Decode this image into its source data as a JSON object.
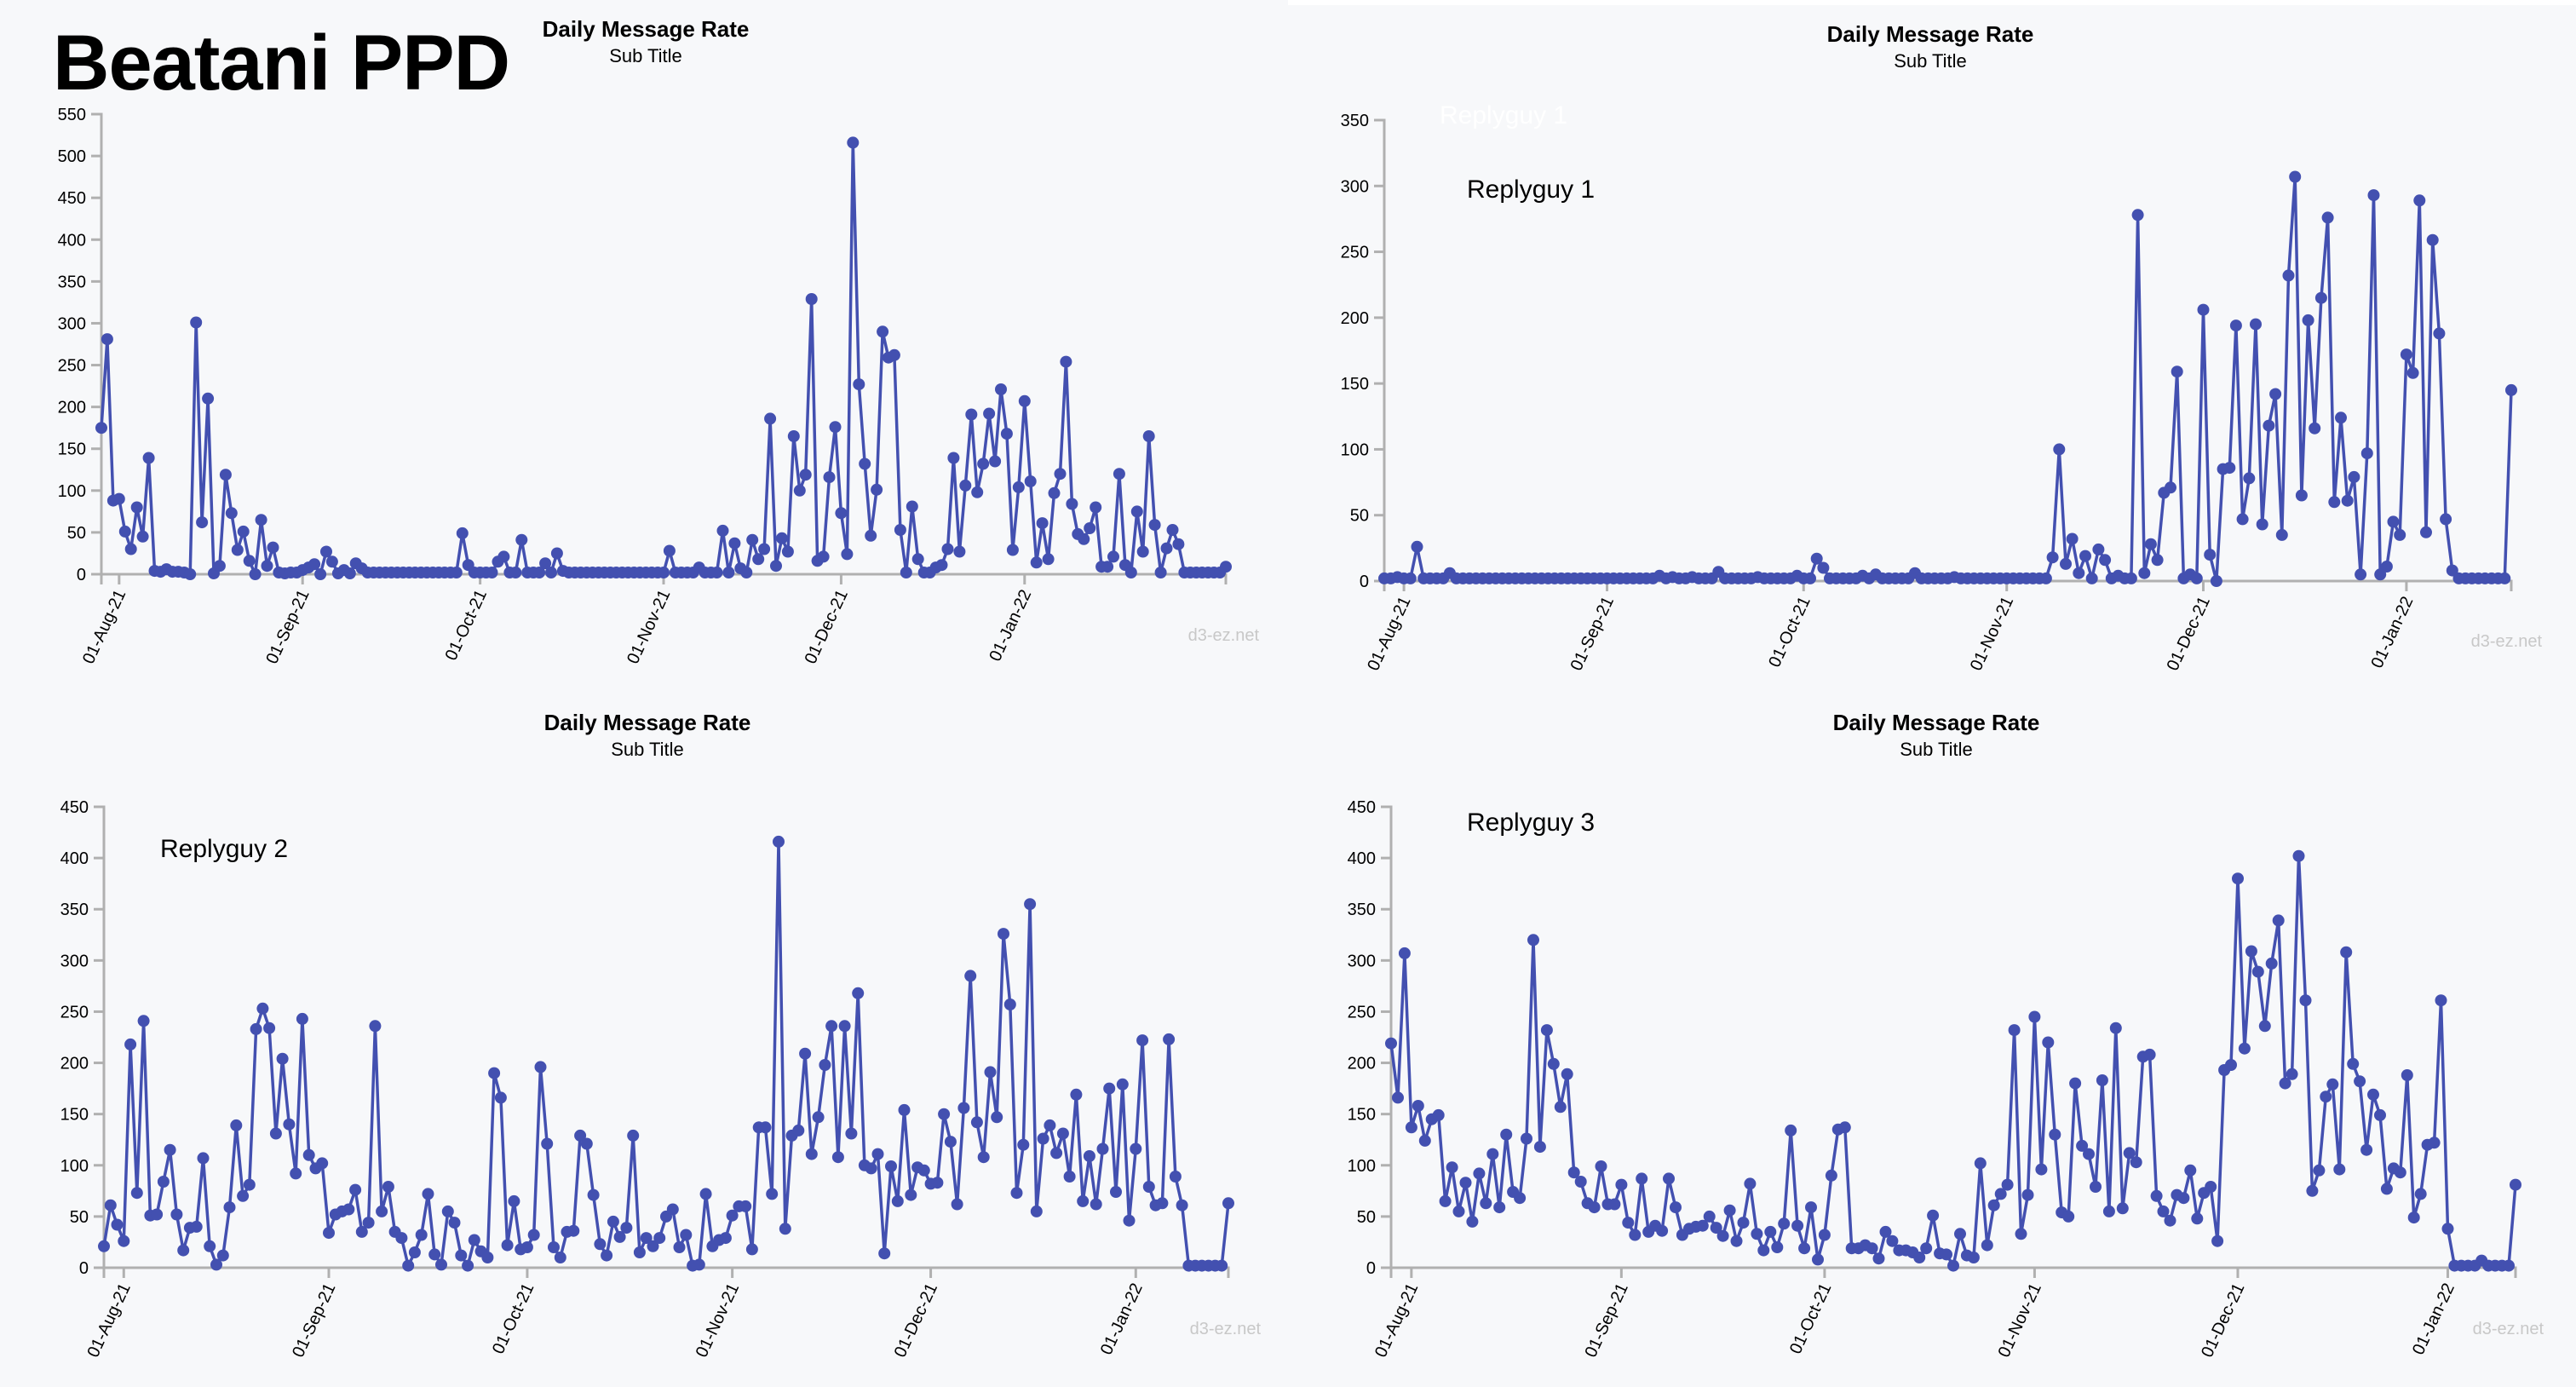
{
  "page": {
    "title": "Beatani PPD"
  },
  "colors": {
    "line": "#4350b0",
    "axis": "#b0b0b0",
    "panel_bg": "#f7f8fa",
    "credit": "#c8c8c8"
  },
  "chart_data": [
    {
      "type": "line",
      "title": "Daily Message Rate",
      "subtitle": "Sub Title",
      "annotation": "",
      "credit": "d3-ez.net",
      "xlabel": "",
      "ylabel": "",
      "x_start": "2021-07-29",
      "x_ticks": [
        "01-Aug-21",
        "01-Sep-21",
        "01-Oct-21",
        "01-Nov-21",
        "01-Dec-21",
        "01-Jan-22"
      ],
      "ylim": [
        0,
        550
      ],
      "y_ticks": [
        0,
        50,
        100,
        150,
        200,
        250,
        300,
        350,
        400,
        450,
        500,
        550
      ],
      "grid": false,
      "values": [
        175,
        281,
        88,
        90,
        51,
        30,
        80,
        45,
        139,
        4,
        3,
        6,
        3,
        3,
        2,
        0,
        301,
        62,
        210,
        1,
        10,
        119,
        73,
        29,
        51,
        16,
        0,
        65,
        10,
        32,
        2,
        1,
        2,
        2,
        5,
        8,
        12,
        0,
        27,
        15,
        1,
        5,
        1,
        13,
        7,
        2,
        2,
        2,
        2,
        2,
        2,
        2,
        2,
        2,
        2,
        2,
        2,
        2,
        2,
        2,
        2,
        49,
        11,
        2,
        2,
        2,
        2,
        15,
        21,
        2,
        2,
        41,
        2,
        2,
        2,
        13,
        2,
        25,
        4,
        2,
        2,
        2,
        2,
        2,
        2,
        2,
        2,
        2,
        2,
        2,
        2,
        2,
        2,
        2,
        2,
        2,
        28,
        2,
        2,
        2,
        2,
        8,
        2,
        2,
        2,
        52,
        2,
        37,
        7,
        2,
        41,
        18,
        30,
        186,
        10,
        43,
        27,
        165,
        100,
        119,
        329,
        16,
        21,
        116,
        176,
        73,
        24,
        516,
        227,
        132,
        46,
        101,
        290,
        259,
        262,
        53,
        2,
        81,
        18,
        2,
        2,
        8,
        11,
        30,
        139,
        27,
        106,
        191,
        98,
        132,
        192,
        135,
        221,
        168,
        29,
        104,
        207,
        111,
        14,
        61,
        18,
        97,
        120,
        254,
        84,
        48,
        42,
        55,
        80,
        9,
        9,
        21,
        120,
        11,
        2,
        75,
        27,
        165,
        59,
        2,
        31,
        53,
        36,
        2,
        2,
        2,
        2,
        2,
        2,
        2,
        9
      ]
    },
    {
      "type": "line",
      "title": "Daily Message Rate",
      "subtitle": "Sub Title",
      "annotation": "Replyguy 1",
      "ghost_annotation": "Replyguy 1",
      "credit": "d3-ez.net",
      "xlabel": "",
      "ylabel": "",
      "x_start": "2021-07-29",
      "x_ticks": [
        "01-Aug-21",
        "01-Sep-21",
        "01-Oct-21",
        "01-Nov-21",
        "01-Dec-21",
        "01-Jan-22"
      ],
      "ylim": [
        0,
        350
      ],
      "y_ticks": [
        0,
        50,
        100,
        150,
        200,
        250,
        300,
        350
      ],
      "grid": false,
      "values": [
        2,
        2,
        3,
        2,
        2,
        26,
        2,
        2,
        2,
        2,
        6,
        2,
        2,
        2,
        2,
        2,
        2,
        2,
        2,
        2,
        2,
        2,
        2,
        2,
        2,
        2,
        2,
        2,
        2,
        2,
        2,
        2,
        2,
        2,
        2,
        2,
        2,
        2,
        2,
        2,
        2,
        2,
        4,
        2,
        3,
        2,
        2,
        3,
        2,
        2,
        2,
        7,
        2,
        2,
        2,
        2,
        2,
        3,
        2,
        2,
        2,
        2,
        2,
        4,
        2,
        2,
        17,
        10,
        2,
        2,
        2,
        2,
        2,
        4,
        2,
        5,
        2,
        2,
        2,
        2,
        2,
        6,
        2,
        2,
        2,
        2,
        2,
        3,
        2,
        2,
        2,
        2,
        2,
        2,
        2,
        2,
        2,
        2,
        2,
        2,
        2,
        2,
        18,
        100,
        13,
        32,
        6,
        19,
        2,
        24,
        16,
        2,
        4,
        2,
        2,
        278,
        6,
        28,
        16,
        67,
        71,
        159,
        2,
        5,
        2,
        206,
        20,
        0,
        85,
        86,
        194,
        47,
        78,
        195,
        43,
        118,
        142,
        35,
        232,
        307,
        65,
        198,
        116,
        215,
        276,
        60,
        124,
        61,
        79,
        5,
        97,
        293,
        5,
        11,
        45,
        35,
        172,
        158,
        289,
        37,
        259,
        188,
        47,
        8,
        2,
        2,
        2,
        2,
        2,
        2,
        2,
        2,
        145
      ]
    },
    {
      "type": "line",
      "title": "Daily Message Rate",
      "subtitle": "Sub Title",
      "annotation": "Replyguy 2",
      "credit": "d3-ez.net",
      "xlabel": "",
      "ylabel": "",
      "x_start": "2021-07-29",
      "x_ticks": [
        "01-Aug-21",
        "01-Sep-21",
        "01-Oct-21",
        "01-Nov-21",
        "01-Dec-21",
        "01-Jan-22"
      ],
      "ylim": [
        0,
        450
      ],
      "y_ticks": [
        0,
        50,
        100,
        150,
        200,
        250,
        300,
        350,
        400,
        450
      ],
      "grid": false,
      "values": [
        21,
        61,
        42,
        26,
        218,
        73,
        241,
        51,
        52,
        84,
        115,
        52,
        17,
        39,
        40,
        107,
        21,
        3,
        12,
        59,
        139,
        70,
        81,
        233,
        253,
        234,
        131,
        204,
        140,
        92,
        243,
        110,
        97,
        102,
        34,
        52,
        55,
        57,
        76,
        35,
        44,
        236,
        55,
        79,
        35,
        29,
        2,
        15,
        32,
        72,
        13,
        3,
        55,
        44,
        12,
        2,
        27,
        16,
        10,
        190,
        166,
        22,
        65,
        18,
        20,
        32,
        196,
        121,
        20,
        10,
        35,
        36,
        129,
        121,
        71,
        23,
        12,
        45,
        30,
        39,
        129,
        15,
        29,
        21,
        29,
        50,
        57,
        20,
        32,
        2,
        3,
        72,
        21,
        27,
        29,
        51,
        60,
        60,
        18,
        137,
        137,
        72,
        416,
        38,
        129,
        134,
        209,
        111,
        147,
        198,
        236,
        108,
        236,
        131,
        268,
        100,
        97,
        111,
        14,
        99,
        65,
        154,
        71,
        98,
        95,
        82,
        83,
        150,
        123,
        62,
        156,
        285,
        142,
        108,
        191,
        147,
        326,
        257,
        73,
        120,
        355,
        55,
        126,
        139,
        112,
        131,
        89,
        169,
        65,
        109,
        62,
        116,
        175,
        74,
        179,
        46,
        116,
        222,
        79,
        61,
        63,
        223,
        89,
        61,
        2,
        2,
        2,
        2,
        2,
        2,
        63
      ]
    },
    {
      "type": "line",
      "title": "Daily Message Rate",
      "subtitle": "Sub Title",
      "annotation": "Replyguy 3",
      "credit": "d3-ez.net",
      "xlabel": "",
      "ylabel": "",
      "x_start": "2021-07-29",
      "x_ticks": [
        "01-Aug-21",
        "01-Sep-21",
        "01-Oct-21",
        "01-Nov-21",
        "01-Dec-21",
        "01-Jan-22"
      ],
      "ylim": [
        0,
        450
      ],
      "y_ticks": [
        0,
        50,
        100,
        150,
        200,
        250,
        300,
        350,
        400,
        450
      ],
      "grid": false,
      "values": [
        219,
        166,
        307,
        137,
        158,
        124,
        145,
        149,
        65,
        98,
        55,
        83,
        45,
        92,
        63,
        111,
        59,
        130,
        74,
        68,
        126,
        320,
        118,
        232,
        199,
        157,
        189,
        93,
        84,
        63,
        59,
        99,
        62,
        62,
        81,
        44,
        32,
        87,
        35,
        41,
        36,
        87,
        59,
        32,
        38,
        40,
        41,
        50,
        39,
        31,
        56,
        26,
        44,
        82,
        33,
        17,
        35,
        20,
        43,
        134,
        41,
        19,
        59,
        8,
        32,
        90,
        135,
        137,
        19,
        19,
        22,
        19,
        9,
        35,
        26,
        17,
        17,
        15,
        10,
        19,
        51,
        14,
        13,
        2,
        33,
        12,
        10,
        102,
        22,
        61,
        72,
        81,
        232,
        33,
        71,
        245,
        96,
        220,
        130,
        54,
        50,
        180,
        119,
        111,
        79,
        183,
        55,
        234,
        58,
        112,
        103,
        206,
        208,
        70,
        55,
        46,
        71,
        68,
        95,
        48,
        73,
        79,
        26,
        193,
        198,
        380,
        214,
        309,
        289,
        236,
        297,
        339,
        180,
        189,
        402,
        261,
        75,
        95,
        167,
        179,
        96,
        308,
        199,
        182,
        115,
        169,
        149,
        77,
        97,
        93,
        188,
        49,
        72,
        120,
        122,
        261,
        38,
        2,
        2,
        2,
        2,
        7,
        2,
        2,
        2,
        2,
        81
      ]
    }
  ]
}
